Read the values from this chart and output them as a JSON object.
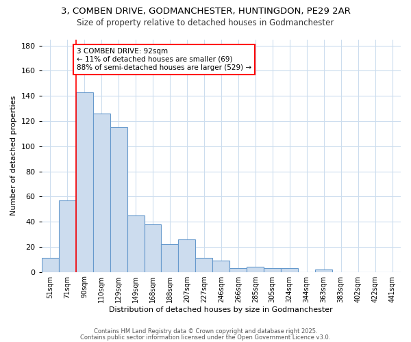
{
  "title1": "3, COMBEN DRIVE, GODMANCHESTER, HUNTINGDON, PE29 2AR",
  "title2": "Size of property relative to detached houses in Godmanchester",
  "xlabel": "Distribution of detached houses by size in Godmanchester",
  "ylabel": "Number of detached properties",
  "categories": [
    "51sqm",
    "71sqm",
    "90sqm",
    "110sqm",
    "129sqm",
    "149sqm",
    "168sqm",
    "188sqm",
    "207sqm",
    "227sqm",
    "246sqm",
    "266sqm",
    "285sqm",
    "305sqm",
    "324sqm",
    "344sqm",
    "363sqm",
    "383sqm",
    "402sqm",
    "422sqm",
    "441sqm"
  ],
  "values": [
    11,
    57,
    143,
    126,
    115,
    45,
    38,
    22,
    26,
    11,
    9,
    3,
    4,
    3,
    3,
    0,
    2,
    0,
    0,
    0,
    0
  ],
  "bar_color": "#ccdcee",
  "bar_edge_color": "#6699cc",
  "red_line_x": 2,
  "annotation_text": "3 COMBEN DRIVE: 92sqm\n← 11% of detached houses are smaller (69)\n88% of semi-detached houses are larger (529) →",
  "annotation_box_color": "white",
  "annotation_box_edge": "red",
  "footer1": "Contains HM Land Registry data © Crown copyright and database right 2025.",
  "footer2": "Contains public sector information licensed under the Open Government Licence v3.0.",
  "ylim": [
    0,
    185
  ],
  "background_color": "#ffffff",
  "plot_bg_color": "#ffffff"
}
